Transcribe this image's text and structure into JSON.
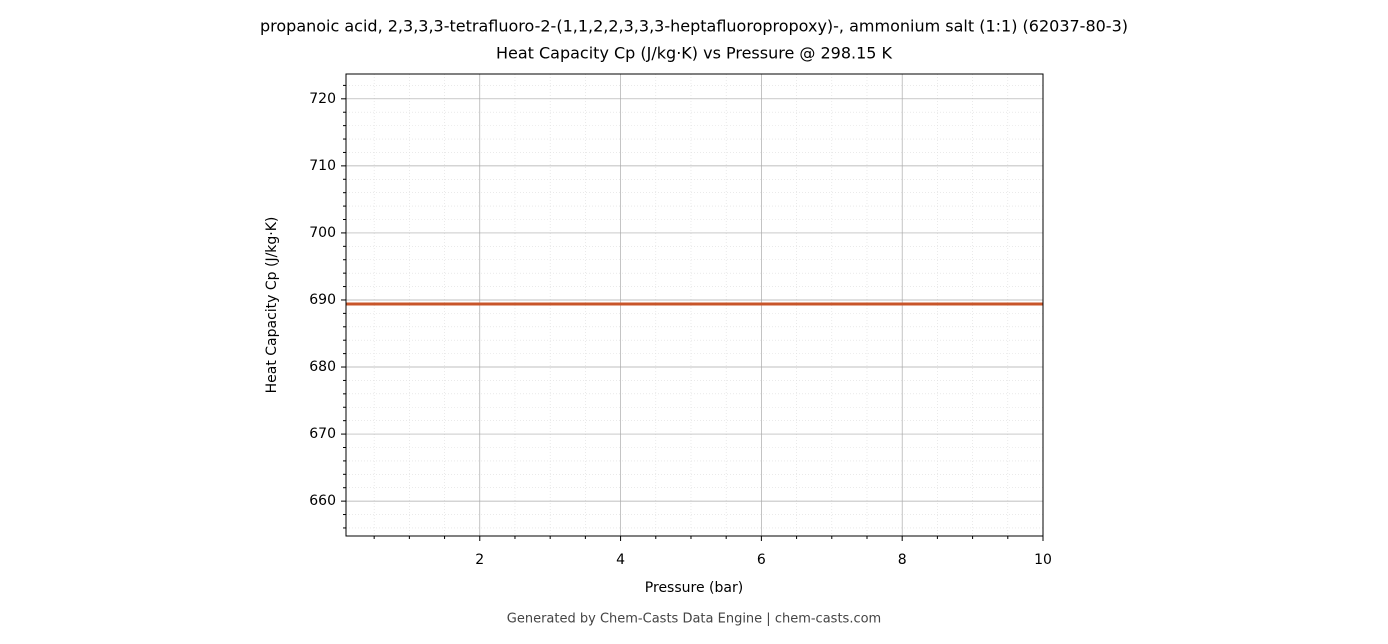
{
  "chart_data": {
    "type": "line",
    "title": "propanoic acid, 2,3,3,3-tetrafluoro-2-(1,1,2,2,3,3,3-heptafluoropropoxy)-, ammonium salt (1:1) (62037-80-3)",
    "subtitle": "Heat Capacity Cp (J/kg·K) vs Pressure @ 298.15 K",
    "x_label": "Pressure (bar)",
    "y_label": "Heat Capacity Cp (J/kg·K)",
    "footer": "Generated by Chem-Casts Data Engine | chem-casts.com",
    "x": [
      0.1,
      10
    ],
    "series": [
      {
        "name": "Cp",
        "color": "#c8552a",
        "values": [
          689.4,
          689.4
        ]
      }
    ],
    "xlim": [
      0.1,
      10
    ],
    "ylim": [
      654.8,
      723.7
    ],
    "xticks": [
      2,
      4,
      6,
      8,
      10
    ],
    "yticks": [
      660,
      670,
      680,
      690,
      700,
      710,
      720
    ],
    "xminorticks": [
      0.5,
      1,
      1.5,
      2.5,
      3,
      3.5,
      4.5,
      5,
      5.5,
      6.5,
      7,
      7.5,
      8.5,
      9,
      9.5
    ],
    "yminorticks": [
      656,
      658,
      662,
      664,
      666,
      668,
      672,
      674,
      676,
      678,
      682,
      684,
      686,
      688,
      692,
      694,
      696,
      698,
      702,
      704,
      706,
      708,
      712,
      714,
      716,
      718,
      722
    ],
    "grid": true,
    "legend": false
  }
}
